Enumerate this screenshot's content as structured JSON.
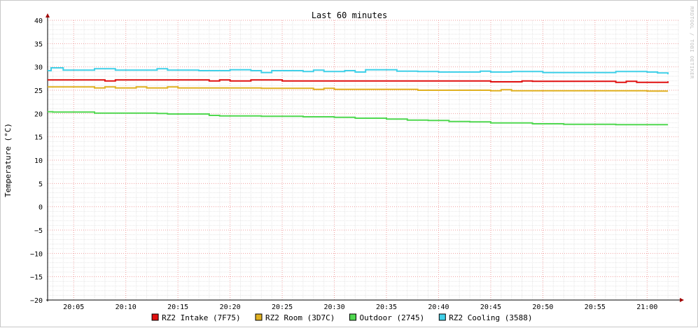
{
  "chart_data": {
    "type": "line",
    "title": "Last 60 minutes",
    "ylabel": "Temperature (°C)",
    "xlabel": "",
    "watermark": "RRDTOOL / TOBI OETIKER",
    "ylim": [
      -20,
      40
    ],
    "yticks": [
      40,
      35,
      30,
      25,
      20,
      15,
      10,
      5,
      0,
      -5,
      -10,
      -15,
      -20
    ],
    "xlim": [
      "20:02:30",
      "21:03:00"
    ],
    "xticks": [
      "20:05",
      "20:10",
      "20:15",
      "20:20",
      "20:25",
      "20:30",
      "20:35",
      "20:40",
      "20:45",
      "20:50",
      "20:55",
      "21:00"
    ],
    "grid": true,
    "legend_position": "bottom",
    "series": [
      {
        "name": "RZ2 Intake (7F75)",
        "color": "#e01010",
        "x": [
          "20:02:30",
          "20:08:00",
          "20:09:00",
          "20:18:00",
          "20:19:00",
          "20:20:00",
          "20:22:00",
          "20:25:00",
          "20:34:00",
          "20:45:00",
          "20:48:00",
          "20:49:00",
          "20:57:00",
          "20:58:00",
          "20:59:00",
          "21:02:00"
        ],
        "values": [
          27.2,
          27.0,
          27.2,
          27.0,
          27.2,
          27.0,
          27.2,
          27.0,
          27.0,
          26.8,
          27.0,
          26.9,
          26.7,
          26.9,
          26.7,
          26.9
        ]
      },
      {
        "name": "RZ2 Room (3D7C)",
        "color": "#e0b020",
        "x": [
          "20:02:30",
          "20:07:00",
          "20:08:00",
          "20:09:00",
          "20:11:00",
          "20:12:00",
          "20:13:00",
          "20:14:00",
          "20:15:00",
          "20:23:00",
          "20:28:00",
          "20:29:00",
          "20:30:00",
          "20:33:00",
          "20:38:00",
          "20:45:00",
          "20:46:00",
          "20:47:00",
          "20:54:00",
          "21:00:00",
          "21:02:00"
        ],
        "values": [
          25.7,
          25.5,
          25.7,
          25.5,
          25.7,
          25.5,
          25.5,
          25.7,
          25.5,
          25.4,
          25.2,
          25.4,
          25.2,
          25.2,
          25.0,
          24.9,
          25.1,
          24.9,
          24.9,
          24.8,
          24.8
        ]
      },
      {
        "name": "Outdoor (2745)",
        "color": "#50d850",
        "x": [
          "20:02:30",
          "20:03:00",
          "20:07:00",
          "20:13:00",
          "20:14:00",
          "20:18:00",
          "20:19:00",
          "20:23:00",
          "20:27:00",
          "20:30:00",
          "20:32:00",
          "20:35:00",
          "20:37:00",
          "20:39:00",
          "20:41:00",
          "20:43:00",
          "20:45:00",
          "20:48:00",
          "20:49:00",
          "20:52:00",
          "20:57:00",
          "21:02:00"
        ],
        "values": [
          20.4,
          20.3,
          20.1,
          20.0,
          19.9,
          19.6,
          19.5,
          19.4,
          19.3,
          19.2,
          19.0,
          18.8,
          18.6,
          18.5,
          18.3,
          18.2,
          18.0,
          18.0,
          17.8,
          17.7,
          17.6,
          17.6
        ]
      },
      {
        "name": "RZ2 Cooling (3588)",
        "color": "#40d0e8",
        "x": [
          "20:02:30",
          "20:02:50",
          "20:04:00",
          "20:07:00",
          "20:09:00",
          "20:13:00",
          "20:14:00",
          "20:17:00",
          "20:20:00",
          "20:22:00",
          "20:23:00",
          "20:24:00",
          "20:27:00",
          "20:28:00",
          "20:29:00",
          "20:31:00",
          "20:32:00",
          "20:33:00",
          "20:36:00",
          "20:38:00",
          "20:40:00",
          "20:44:00",
          "20:45:00",
          "20:47:00",
          "20:50:00",
          "20:52:00",
          "20:57:00",
          "21:00:00",
          "21:01:00",
          "21:02:00"
        ],
        "values": [
          29.2,
          29.8,
          29.3,
          29.6,
          29.3,
          29.6,
          29.3,
          29.2,
          29.4,
          29.2,
          28.8,
          29.2,
          29.0,
          29.3,
          29.0,
          29.2,
          28.9,
          29.4,
          29.1,
          29.0,
          28.9,
          29.1,
          28.9,
          29.0,
          28.8,
          28.8,
          29.0,
          28.9,
          28.7,
          28.4
        ]
      }
    ]
  }
}
